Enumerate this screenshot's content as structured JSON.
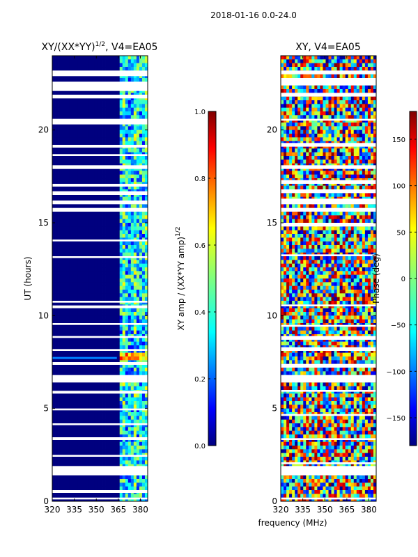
{
  "suptitle": "2018-01-16 0.0-24.0",
  "colors": {
    "jet": [
      "#00007f",
      "#0000ff",
      "#007fff",
      "#00ffff",
      "#7fff7f",
      "#ffff00",
      "#ff7f00",
      "#ff0000",
      "#7f0000"
    ],
    "background": "#ffffff"
  },
  "chart_data": [
    {
      "type": "heatmap",
      "title_main": "XY/(XX*YY)",
      "title_sup": "1/2",
      "title_rest": ", V4=EA05",
      "xlabel": "frequency (MHz)",
      "ylabel": "UT (hours)",
      "xlim": [
        320,
        385
      ],
      "ylim": [
        0,
        24
      ],
      "x_ticks": [
        "320",
        "335",
        "350",
        "365",
        "380"
      ],
      "x_tick_values": [
        320,
        335,
        350,
        365,
        380
      ],
      "y_ticks": [
        "0",
        "5",
        "10",
        "15",
        "20"
      ],
      "y_tick_values": [
        0,
        5,
        10,
        15,
        20
      ],
      "colorbar": {
        "label_main": "XY amp / (XX*YY amp)",
        "label_sup": "1/2",
        "range": [
          0.0,
          1.0
        ],
        "ticks": [
          "0.0",
          "0.2",
          "0.4",
          "0.6",
          "0.8",
          "1.0"
        ],
        "tick_values": [
          0.0,
          0.2,
          0.4,
          0.6,
          0.8,
          1.0
        ]
      },
      "flagged_time_bands_hours": [
        [
          0.1,
          0.2
        ],
        [
          0.45,
          0.6
        ],
        [
          1.4,
          1.5
        ],
        [
          1.5,
          1.9
        ],
        [
          2.4,
          2.5
        ],
        [
          3.3,
          3.45
        ],
        [
          4.1,
          4.2
        ],
        [
          4.9,
          5.0
        ],
        [
          5.8,
          5.95
        ],
        [
          6.4,
          6.8
        ],
        [
          7.35,
          7.5
        ],
        [
          8.1,
          8.2
        ],
        [
          8.8,
          8.9
        ],
        [
          9.5,
          9.6
        ],
        [
          10.4,
          10.55
        ],
        [
          10.7,
          10.8
        ],
        [
          13.1,
          13.2
        ],
        [
          14.0,
          14.1
        ],
        [
          15.6,
          15.8
        ],
        [
          16.0,
          16.2
        ],
        [
          16.5,
          16.7
        ],
        [
          16.95,
          17.1
        ],
        [
          17.9,
          18.1
        ],
        [
          18.6,
          18.7
        ],
        [
          19.05,
          19.2
        ],
        [
          20.3,
          20.6
        ],
        [
          21.7,
          21.9
        ],
        [
          22.1,
          22.6
        ],
        [
          22.9,
          23.2
        ]
      ],
      "notes": "Normalized XY amplitude is near 0 below ~364 MHz and noisy (0.2-0.6) between ~364 and 382 MHz; bright band near 7.7 h."
    },
    {
      "type": "heatmap",
      "title": "XY, V4=EA05",
      "xlim": [
        320,
        385
      ],
      "ylim": [
        0,
        24
      ],
      "x_ticks": [
        "320",
        "335",
        "350",
        "365",
        "380"
      ],
      "x_tick_values": [
        320,
        335,
        350,
        365,
        380
      ],
      "y_ticks": [
        "0",
        "5",
        "10",
        "15",
        "20"
      ],
      "y_tick_values": [
        0,
        5,
        10,
        15,
        20
      ],
      "colorbar": {
        "label": "Phase (deg)",
        "range": [
          -180,
          180
        ],
        "ticks": [
          "−150",
          "−100",
          "−50",
          "0",
          "50",
          "100",
          "150"
        ],
        "tick_values": [
          -150,
          -100,
          -50,
          0,
          50,
          100,
          150
        ]
      },
      "flagged_time_bands_hours": [
        [
          0.1,
          0.2
        ],
        [
          1.4,
          1.9
        ],
        [
          2.0,
          2.1
        ],
        [
          3.3,
          3.4
        ],
        [
          4.6,
          4.7
        ],
        [
          5.9,
          6.0
        ],
        [
          6.4,
          6.8
        ],
        [
          7.2,
          7.4
        ],
        [
          8.1,
          8.3
        ],
        [
          8.7,
          8.9
        ],
        [
          9.4,
          9.5
        ],
        [
          10.5,
          10.6
        ],
        [
          13.2,
          13.3
        ],
        [
          14.8,
          15.0
        ],
        [
          15.6,
          15.8
        ],
        [
          16.0,
          16.3
        ],
        [
          16.6,
          16.8
        ],
        [
          17.1,
          17.3
        ],
        [
          17.9,
          18.1
        ],
        [
          19.1,
          19.3
        ],
        [
          20.5,
          20.6
        ],
        [
          21.8,
          22.0
        ],
        [
          22.4,
          22.8
        ],
        [
          23.0,
          23.2
        ]
      ],
      "notes": "XY phase is randomly wrapped across the full -180..180 deg range at all frequencies and times."
    }
  ]
}
